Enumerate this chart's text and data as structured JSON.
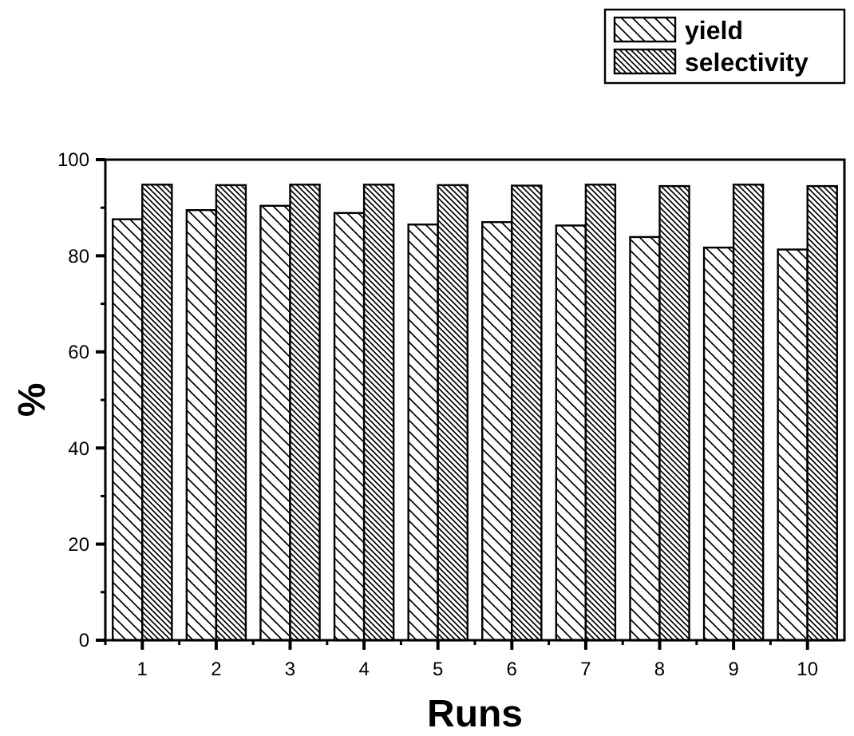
{
  "chart_data": {
    "type": "bar",
    "xlabel": "Runs",
    "ylabel": "%",
    "categories": [
      "1",
      "2",
      "3",
      "4",
      "5",
      "6",
      "7",
      "8",
      "9",
      "10"
    ],
    "series": [
      {
        "name": "yield",
        "color": "#000000",
        "values": [
          87.6,
          89.5,
          90.4,
          88.9,
          86.5,
          87.0,
          86.3,
          83.9,
          81.7,
          81.3
        ]
      },
      {
        "name": "selectivity",
        "color": "#000000",
        "values": [
          94.8,
          94.7,
          94.8,
          94.8,
          94.7,
          94.6,
          94.8,
          94.5,
          94.8,
          94.5
        ]
      }
    ],
    "ylim": [
      0,
      100
    ],
    "yticks": [
      0,
      20,
      40,
      60,
      80,
      100
    ],
    "grid": false,
    "legend": "top right"
  }
}
